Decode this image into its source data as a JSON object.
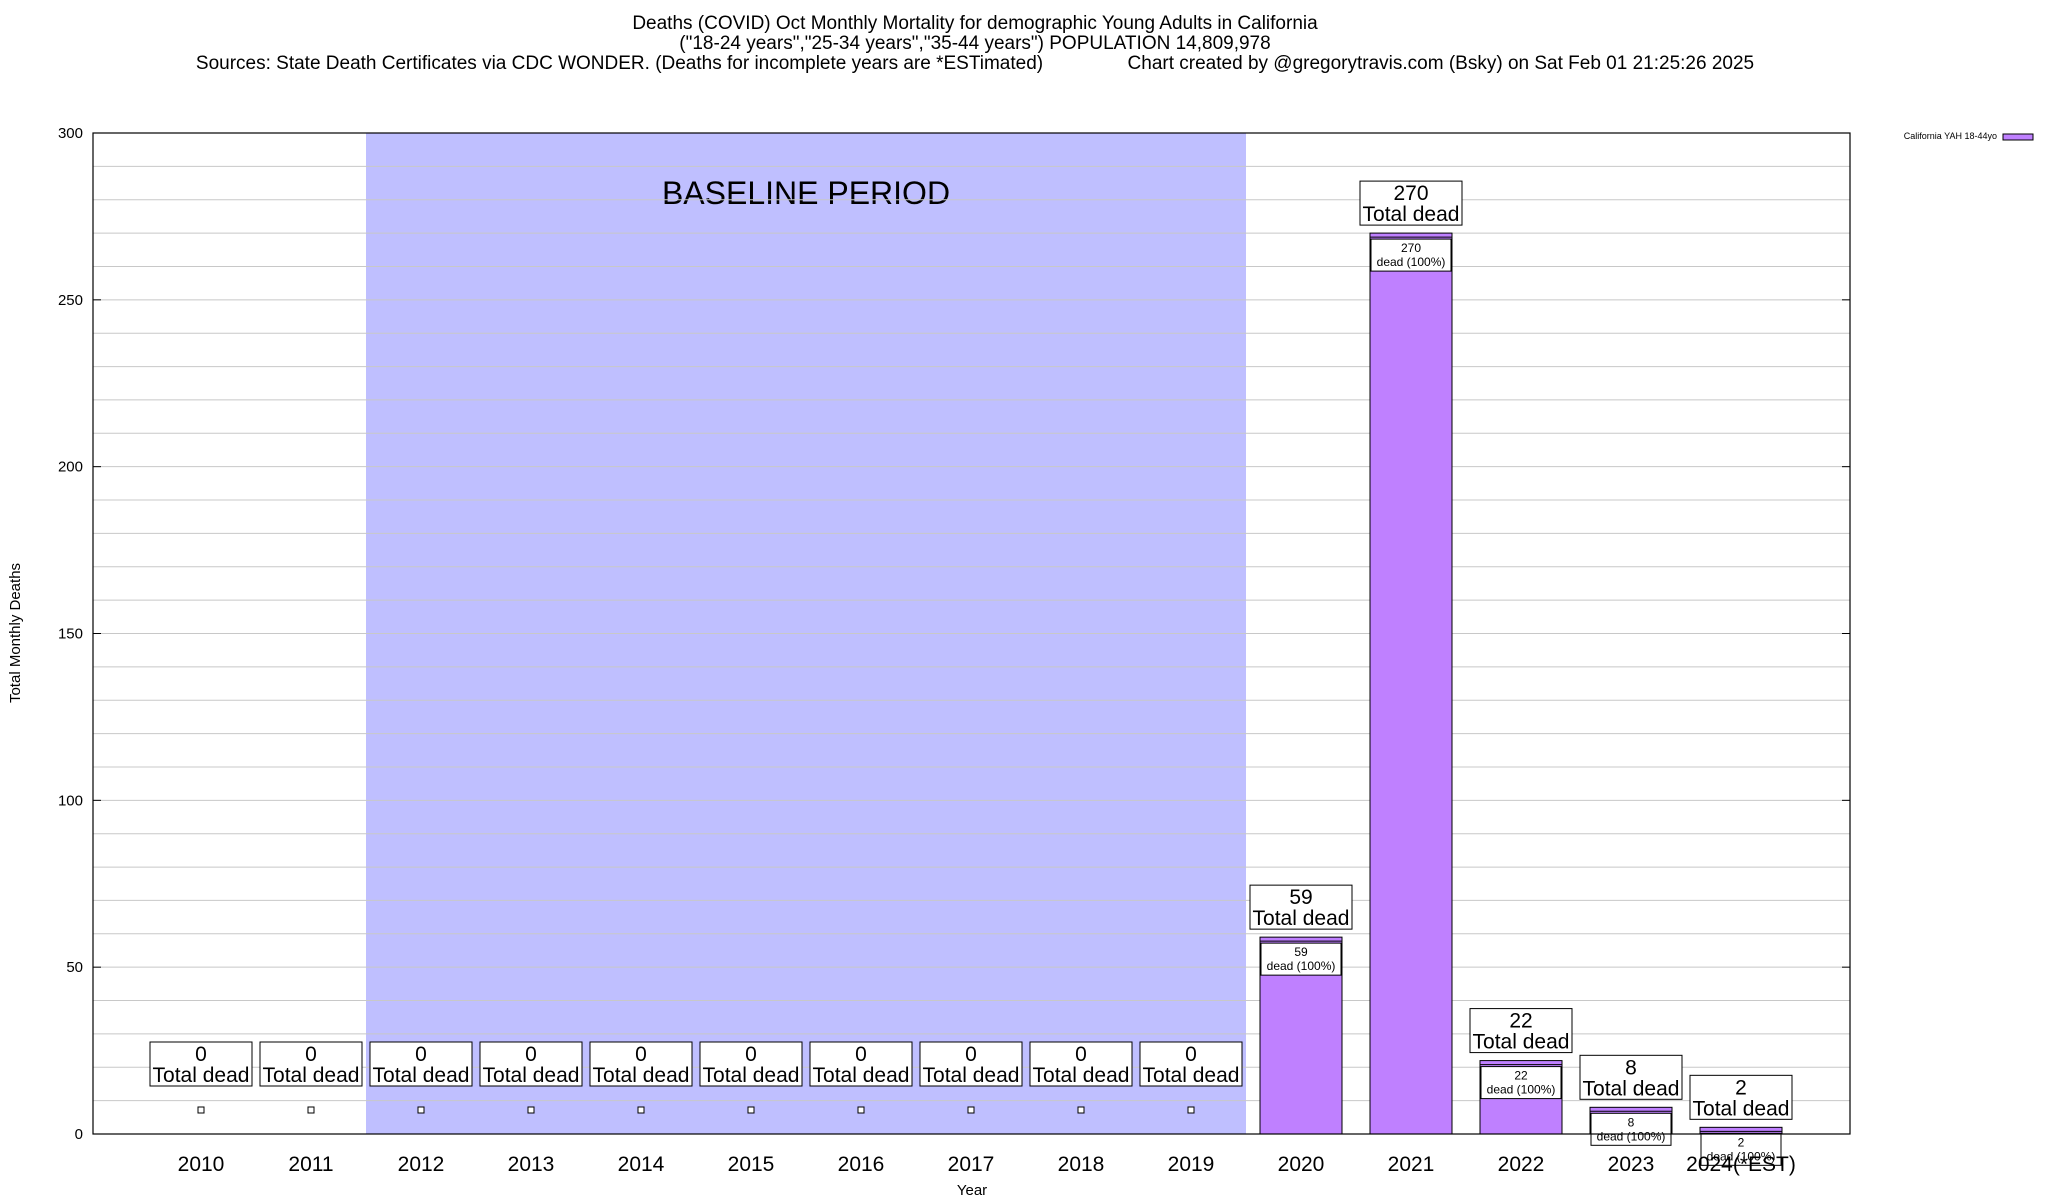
{
  "chart_data": {
    "type": "bar",
    "title_lines": [
      "Deaths (COVID) Oct Monthly Mortality for demographic Young Adults in California",
      "(\"18-24 years\",\"25-34 years\",\"35-44 years\") POPULATION 14,809,978",
      "Sources: State Death Certificates via CDC WONDER. (Deaths for incomplete years are *ESTimated)                Chart created by @gregorytravis.com (Bsky) on Sat Feb 01 21:25:26 2025"
    ],
    "xlabel": "Year",
    "ylabel": "Total Monthly Deaths",
    "ylim": [
      0,
      300
    ],
    "yticks": [
      0,
      50,
      100,
      150,
      200,
      250,
      300
    ],
    "minor_grid_step": 10,
    "grid": true,
    "legend": {
      "placement": "top-right",
      "label": "California YAH 18-44yo"
    },
    "baseline": {
      "label": "BASELINE PERIOD",
      "start": "2012",
      "end": "2019"
    },
    "total_label_text": "Total dead",
    "segment_label_text": "dead (100%)",
    "categories": [
      "2010",
      "2011",
      "2012",
      "2013",
      "2014",
      "2015",
      "2016",
      "2017",
      "2018",
      "2019",
      "2020",
      "2021",
      "2022",
      "2023",
      "2024(*EST)"
    ],
    "series": [
      {
        "name": "California YAH 18-44yo",
        "values": [
          0,
          0,
          0,
          0,
          0,
          0,
          0,
          0,
          0,
          0,
          59,
          270,
          22,
          8,
          2
        ]
      }
    ],
    "colors": {
      "bar": "#bf80ff",
      "baseline": "#bfbfff",
      "grid": "#c8c8c8"
    }
  }
}
